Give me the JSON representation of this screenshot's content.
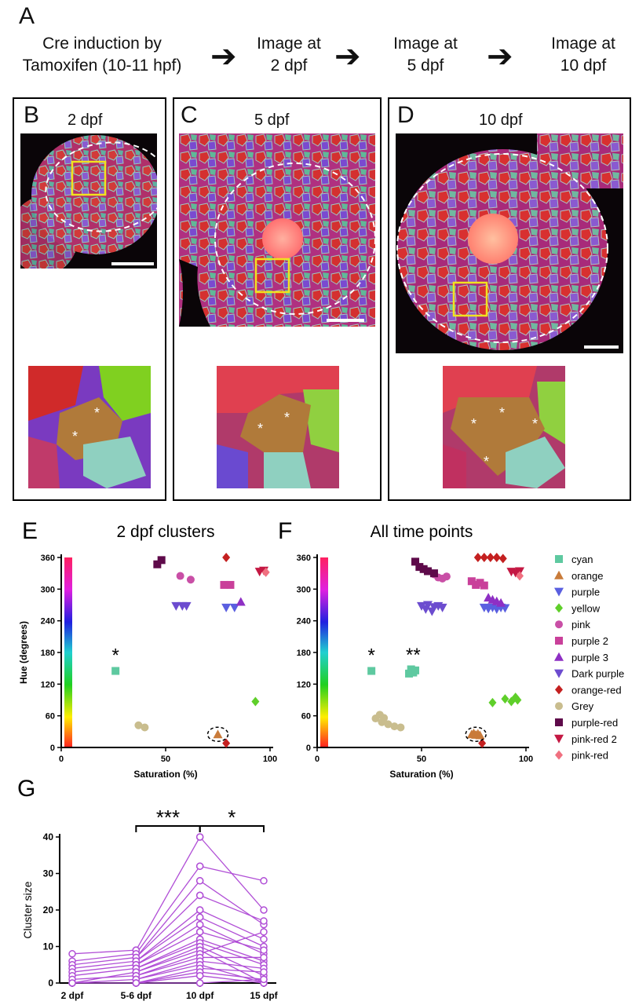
{
  "panel_a": {
    "letter": "A",
    "steps": [
      {
        "line1": "Cre induction by",
        "line2": "Tamoxifen (10-11 hpf)"
      },
      {
        "line1": "Image at",
        "line2": "2 dpf"
      },
      {
        "line1": "Image at",
        "line2": "5 dpf"
      },
      {
        "line1": "Image at",
        "line2": "10 dpf"
      }
    ],
    "arrow_glyph": "➔"
  },
  "panel_b": {
    "letter": "B",
    "label": "2 dpf"
  },
  "panel_c": {
    "letter": "C",
    "label": "5 dpf"
  },
  "panel_d": {
    "letter": "D",
    "label": "10 dpf"
  },
  "asterisk": "*",
  "colors": {
    "cyan": "#5ec9a0",
    "orange": "#c97b3a",
    "purple": "#5a5fe0",
    "yellow": "#5fcf2a",
    "pink": "#c94fa6",
    "purple 2": "#c9409a",
    "purple 3": "#8e2fc4",
    "Dark purple": "#6c4ccf",
    "orange-red": "#c42020",
    "Grey": "#c9bd8e",
    "purple-red": "#5e0a4a",
    "pink-red 2": "#c41843",
    "pink-red": "#f07080",
    "line_purple": "#b04ed6"
  },
  "chart_data": [
    {
      "id": "E",
      "type": "scatter",
      "letter": "E",
      "title": "2 dpf clusters",
      "xlabel": "Saturation (%)",
      "ylabel": "Hue (degrees)",
      "xlim": [
        0,
        100
      ],
      "ylim": [
        0,
        360
      ],
      "xticks": [
        0,
        50,
        100
      ],
      "yticks": [
        0,
        60,
        120,
        180,
        240,
        300,
        360
      ],
      "annotation": "*",
      "series": [
        {
          "name": "cyan",
          "marker": "square",
          "points": [
            [
              26,
              145
            ]
          ]
        },
        {
          "name": "orange",
          "marker": "triangle-up",
          "points": [
            [
              75,
              25
            ]
          ]
        },
        {
          "name": "purple",
          "marker": "triangle-down",
          "points": [
            [
              79,
              265
            ],
            [
              83,
              265
            ]
          ]
        },
        {
          "name": "yellow",
          "marker": "diamond",
          "points": [
            [
              93,
              87
            ]
          ]
        },
        {
          "name": "pink",
          "marker": "circle",
          "points": [
            [
              57,
              325
            ],
            [
              62,
              318
            ]
          ]
        },
        {
          "name": "purple 2",
          "marker": "square",
          "points": [
            [
              78,
              308
            ],
            [
              81,
              308
            ]
          ]
        },
        {
          "name": "purple 3",
          "marker": "triangle-up",
          "points": [
            [
              86,
              276
            ]
          ]
        },
        {
          "name": "Dark purple",
          "marker": "triangle-down",
          "points": [
            [
              55,
              268
            ],
            [
              58,
              268
            ],
            [
              60,
              268
            ]
          ]
        },
        {
          "name": "orange-red",
          "marker": "diamond",
          "points": [
            [
              79,
              362
            ],
            [
              79,
              8
            ]
          ]
        },
        {
          "name": "Grey",
          "marker": "circle",
          "points": [
            [
              37,
              42
            ],
            [
              40,
              38
            ]
          ]
        },
        {
          "name": "purple-red",
          "marker": "square",
          "points": [
            [
              46,
              347
            ],
            [
              48,
              355
            ]
          ]
        },
        {
          "name": "pink-red 2",
          "marker": "triangle-down",
          "points": [
            [
              95,
              333
            ],
            [
              97,
              335
            ]
          ]
        },
        {
          "name": "pink-red",
          "marker": "diamond",
          "points": [
            [
              98,
              332
            ]
          ]
        }
      ]
    },
    {
      "id": "F",
      "type": "scatter",
      "letter": "F",
      "title": "All time points",
      "xlabel": "Saturation (%)",
      "ylabel": "",
      "xlim": [
        0,
        100
      ],
      "ylim": [
        0,
        360
      ],
      "xticks": [
        0,
        50,
        100
      ],
      "yticks": [
        0,
        60,
        120,
        180,
        240,
        300,
        360
      ],
      "annotations": [
        "*",
        "**"
      ],
      "series": [
        {
          "name": "cyan",
          "marker": "square",
          "points": [
            [
              26,
              145
            ],
            [
              44,
              140
            ],
            [
              45,
              148
            ],
            [
              46,
              142
            ],
            [
              47,
              146
            ]
          ]
        },
        {
          "name": "orange",
          "marker": "triangle-up",
          "points": [
            [
              74,
              25
            ],
            [
              75,
              27
            ],
            [
              76,
              24
            ],
            [
              77,
              26
            ],
            [
              78,
              23
            ]
          ]
        },
        {
          "name": "purple",
          "marker": "triangle-down",
          "points": [
            [
              80,
              265
            ],
            [
              82,
              263
            ],
            [
              84,
              265
            ],
            [
              86,
              262
            ],
            [
              88,
              265
            ],
            [
              90,
              264
            ]
          ]
        },
        {
          "name": "yellow",
          "marker": "diamond",
          "points": [
            [
              84,
              85
            ],
            [
              90,
              92
            ],
            [
              93,
              87
            ],
            [
              95,
              95
            ],
            [
              96,
              90
            ]
          ]
        },
        {
          "name": "pink",
          "marker": "circle",
          "points": [
            [
              56,
              328
            ],
            [
              58,
              322
            ],
            [
              60,
              320
            ],
            [
              62,
              324
            ]
          ]
        },
        {
          "name": "purple 2",
          "marker": "square",
          "points": [
            [
              74,
              315
            ],
            [
              76,
              308
            ],
            [
              78,
              312
            ],
            [
              80,
              307
            ]
          ]
        },
        {
          "name": "purple 3",
          "marker": "triangle-up",
          "points": [
            [
              82,
              284
            ],
            [
              84,
              280
            ],
            [
              86,
              277
            ],
            [
              88,
              274
            ]
          ]
        },
        {
          "name": "Dark purple",
          "marker": "triangle-down",
          "points": [
            [
              50,
              268
            ],
            [
              52,
              262
            ],
            [
              53,
              270
            ],
            [
              55,
              258
            ],
            [
              56,
              266
            ],
            [
              58,
              268
            ],
            [
              60,
              265
            ]
          ]
        },
        {
          "name": "orange-red",
          "marker": "diamond",
          "points": [
            [
              77,
              360
            ],
            [
              80,
              360
            ],
            [
              83,
              360
            ],
            [
              86,
              360
            ],
            [
              89,
              358
            ],
            [
              79,
              8
            ]
          ]
        },
        {
          "name": "Grey",
          "marker": "circle",
          "points": [
            [
              28,
              55
            ],
            [
              30,
              62
            ],
            [
              31,
              48
            ],
            [
              34,
              44
            ],
            [
              37,
              40
            ],
            [
              40,
              38
            ],
            [
              32,
              56
            ]
          ]
        },
        {
          "name": "purple-red",
          "marker": "square",
          "points": [
            [
              47,
              352
            ],
            [
              49,
              342
            ],
            [
              51,
              338
            ],
            [
              53,
              334
            ],
            [
              56,
              330
            ]
          ]
        },
        {
          "name": "pink-red 2",
          "marker": "triangle-down",
          "points": [
            [
              93,
              333
            ],
            [
              95,
              331
            ],
            [
              97,
              334
            ]
          ]
        },
        {
          "name": "pink-red",
          "marker": "diamond",
          "points": [
            [
              97,
              325
            ]
          ]
        }
      ]
    },
    {
      "id": "G",
      "type": "line",
      "letter": "G",
      "title": "",
      "xlabel": "",
      "ylabel": "Cluster size",
      "categories": [
        "2 dpf",
        "5-6 dpf",
        "10 dpf",
        "15 dpf"
      ],
      "ylim": [
        0,
        40
      ],
      "yticks": [
        0,
        10,
        20,
        30,
        40
      ],
      "significance": [
        {
          "from": "5-6 dpf",
          "to": "10 dpf",
          "label": "***"
        },
        {
          "from": "10 dpf",
          "to": "15 dpf",
          "label": "*"
        }
      ],
      "pairs_2_to_5": [
        [
          8,
          9
        ],
        [
          6,
          8
        ],
        [
          5,
          7
        ],
        [
          4,
          6
        ],
        [
          3,
          5
        ],
        [
          2,
          4
        ],
        [
          0,
          3
        ],
        [
          1,
          2
        ],
        [
          0,
          0
        ],
        [
          0,
          1
        ]
      ],
      "pairs_5_to_10": [
        [
          9,
          40
        ],
        [
          8,
          32
        ],
        [
          7,
          28
        ],
        [
          7,
          24
        ],
        [
          6,
          20
        ],
        [
          6,
          18
        ],
        [
          5,
          16
        ],
        [
          5,
          14
        ],
        [
          4,
          12
        ],
        [
          4,
          11
        ],
        [
          3,
          10
        ],
        [
          3,
          9
        ],
        [
          2,
          8
        ],
        [
          2,
          7
        ],
        [
          1,
          6
        ],
        [
          1,
          5
        ],
        [
          0,
          4
        ],
        [
          0,
          3
        ],
        [
          0,
          2
        ],
        [
          0,
          0
        ]
      ],
      "pairs_10_to_15": [
        [
          40,
          20
        ],
        [
          32,
          28
        ],
        [
          28,
          16
        ],
        [
          24,
          17
        ],
        [
          20,
          12
        ],
        [
          18,
          10
        ],
        [
          16,
          8
        ],
        [
          14,
          9
        ],
        [
          12,
          6
        ],
        [
          11,
          5
        ],
        [
          10,
          2
        ],
        [
          9,
          0
        ],
        [
          8,
          14
        ],
        [
          7,
          7
        ],
        [
          6,
          4
        ],
        [
          5,
          0
        ],
        [
          4,
          3
        ],
        [
          3,
          1
        ],
        [
          2,
          0
        ],
        [
          0,
          1
        ]
      ]
    }
  ]
}
